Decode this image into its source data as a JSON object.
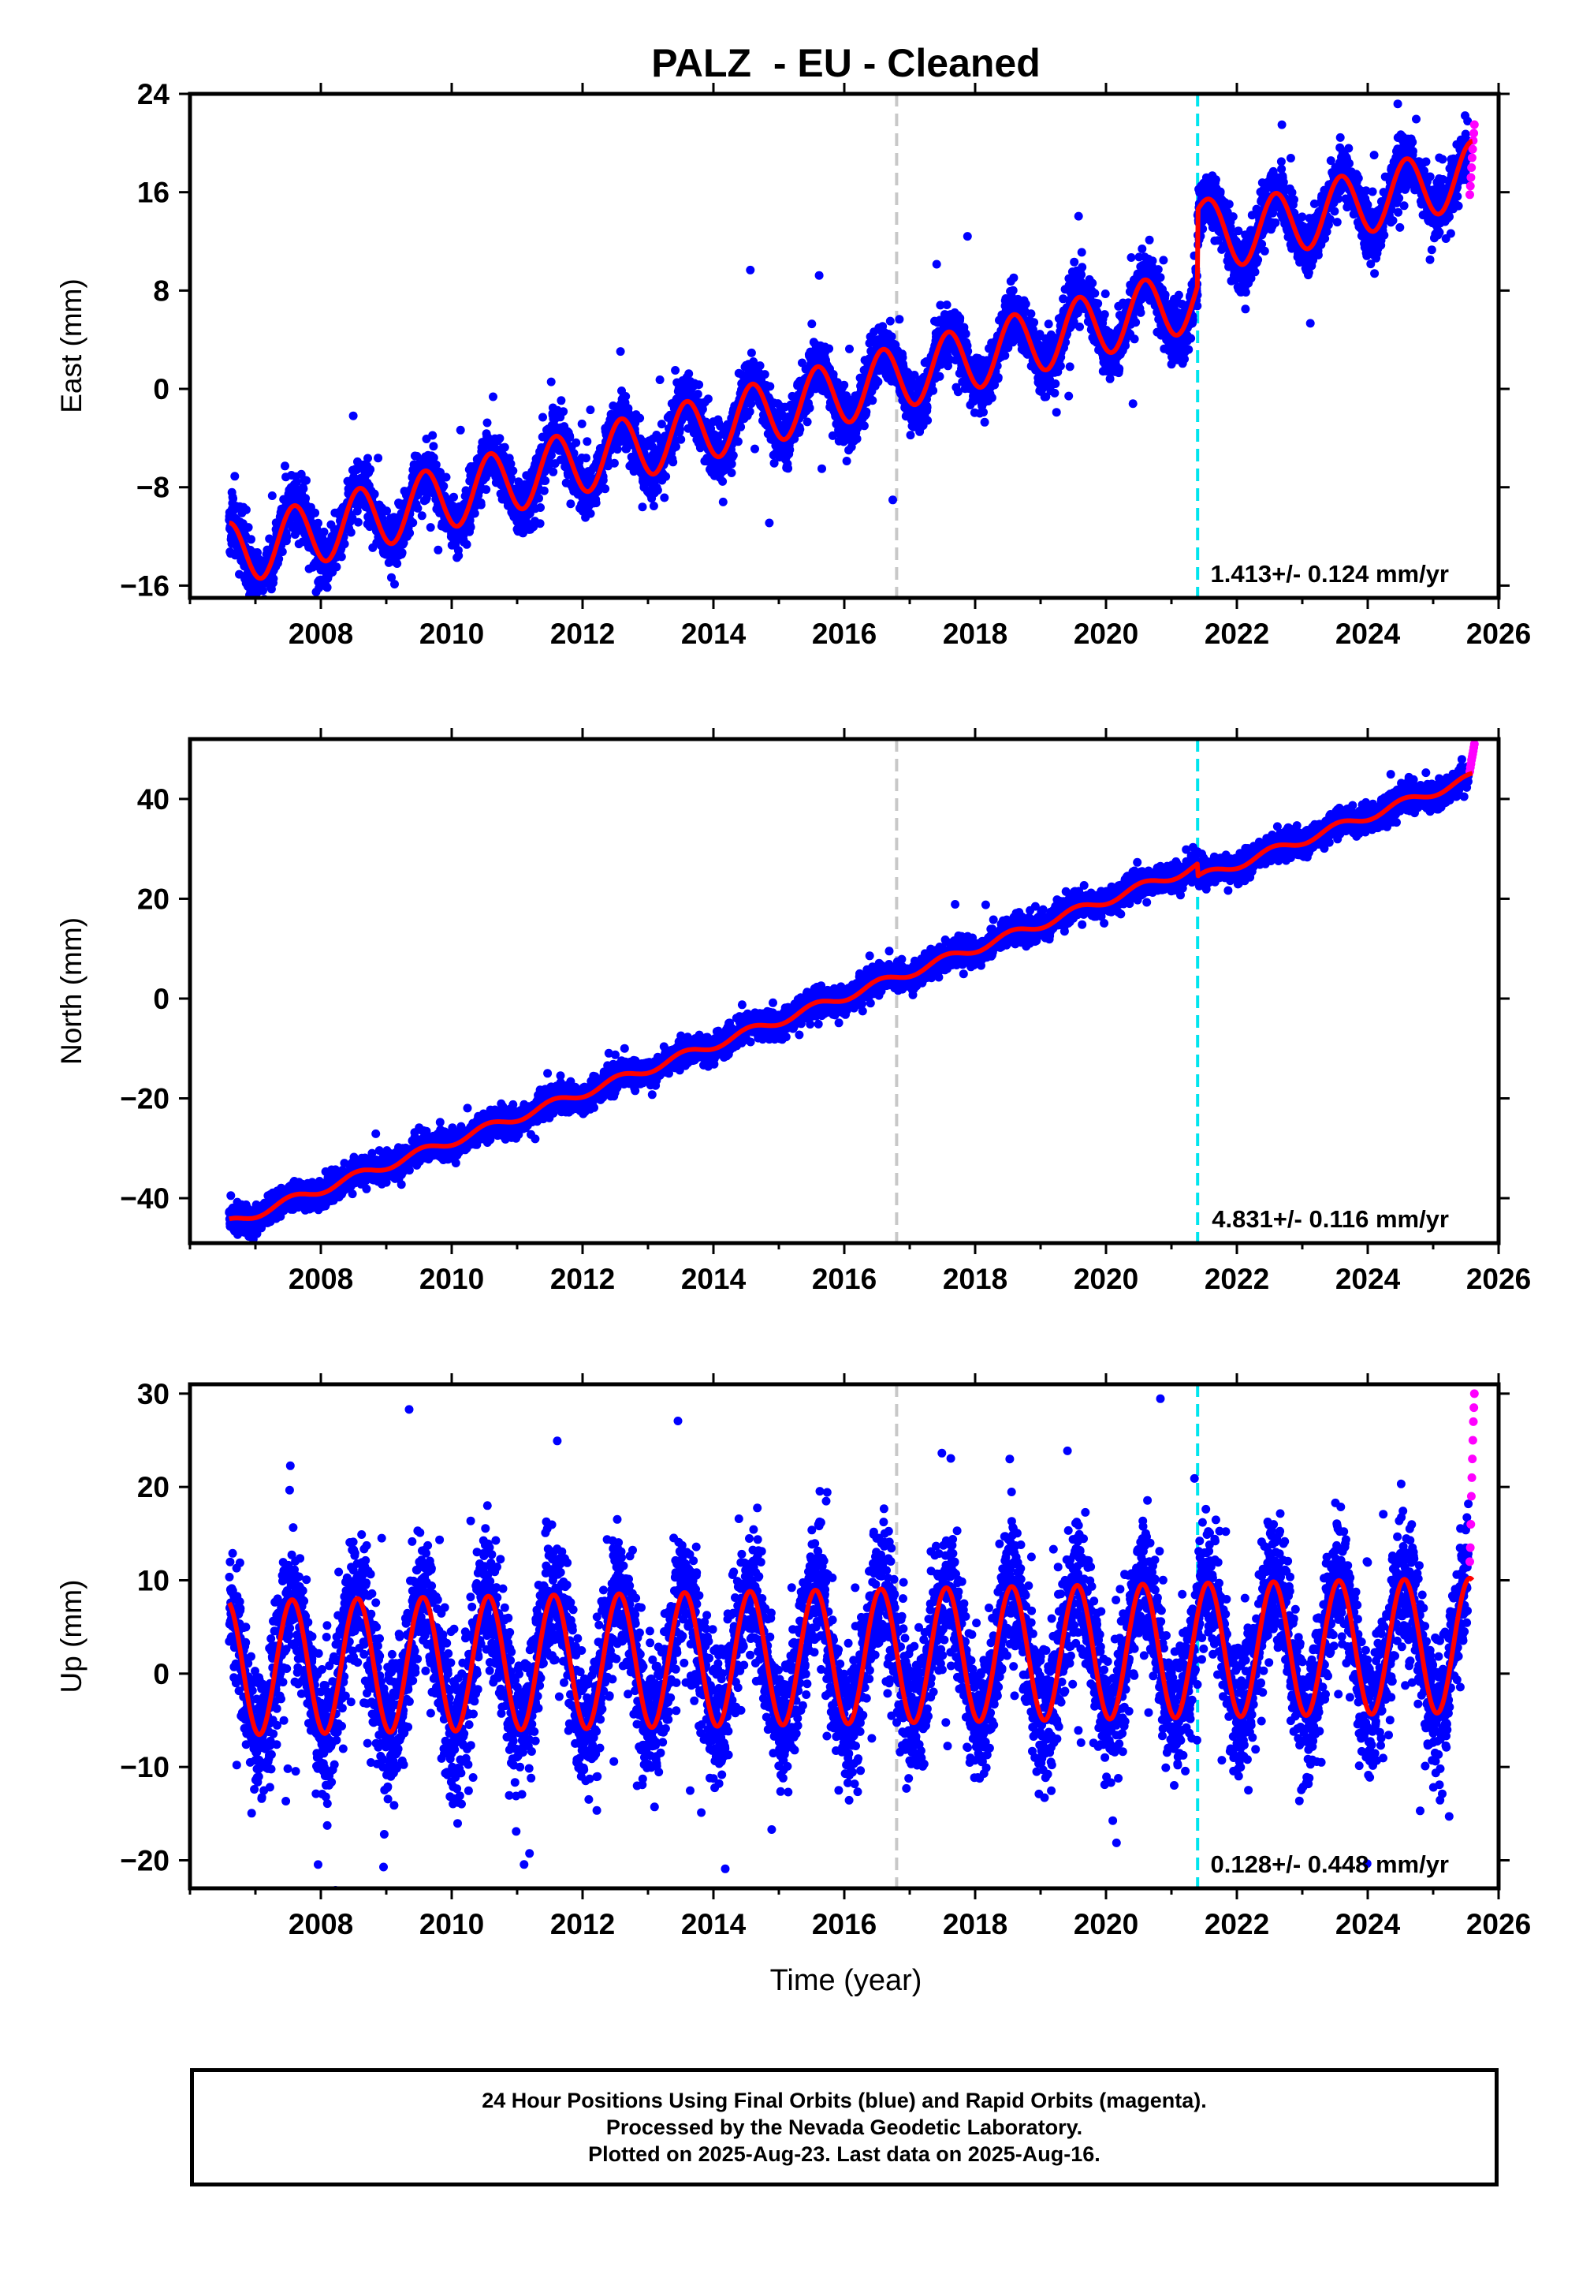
{
  "title": "PALZ  - EU - Cleaned",
  "xlabel": "Time (year)",
  "colors": {
    "final_orbits": "#0000ff",
    "rapid_orbits": "#ff00ff",
    "model": "#ff0000",
    "marker_gray": "#c8c8c8",
    "marker_cyan": "#00e5ee"
  },
  "chart_data": [
    {
      "type": "scatter",
      "ylabel": "East (mm)",
      "xlim": [
        2006.0,
        2026.0
      ],
      "ylim": [
        -17.0,
        24.0
      ],
      "xticks": [
        2008,
        2010,
        2012,
        2014,
        2016,
        2018,
        2020,
        2022,
        2024,
        2026
      ],
      "yticks": [
        -16,
        -8,
        0,
        8,
        16,
        24
      ],
      "rate_label": "1.413+/- 0.124 mm/yr",
      "vertical_markers": [
        {
          "x": 2016.8,
          "style": "gray-dashed"
        },
        {
          "x": 2021.4,
          "style": "cyan-dashed"
        }
      ],
      "model": {
        "start": 2006.6,
        "end": 2025.6,
        "ref": 2006.6,
        "value_at_start": -13.5,
        "rate": 1.413,
        "annual_amp": 2.6,
        "annual_phase": 0.34,
        "steps": [
          {
            "t": 2021.4,
            "offset": 4.2,
            "decay": 2.0,
            "decay_tau": 0.25
          }
        ]
      },
      "series": [
        {
          "name": "Final Orbits",
          "color": "#0000ff",
          "x_range": [
            2006.6,
            2025.54
          ],
          "noise": 1.1,
          "outlier_rate": 0.02,
          "outlier_spread": 4.0
        },
        {
          "name": "Rapid Orbits",
          "color": "#ff00ff",
          "x_range": [
            2025.56,
            2025.63
          ],
          "y_values": [
            15.8,
            16.5,
            17.2,
            18.0,
            18.8,
            19.5,
            20.2,
            20.8,
            21.5
          ]
        }
      ]
    },
    {
      "type": "scatter",
      "ylabel": "North (mm)",
      "xlim": [
        2006.0,
        2026.0
      ],
      "ylim": [
        -49.0,
        52.0
      ],
      "xticks": [
        2008,
        2010,
        2012,
        2014,
        2016,
        2018,
        2020,
        2022,
        2024,
        2026
      ],
      "yticks": [
        -40,
        -20,
        0,
        20,
        40
      ],
      "rate_label": "4.831+/- 0.116 mm/yr",
      "vertical_markers": [
        {
          "x": 2016.8,
          "style": "gray-dashed"
        },
        {
          "x": 2021.4,
          "style": "cyan-dashed"
        }
      ],
      "model": {
        "start": 2006.6,
        "end": 2025.6,
        "ref": 2006.6,
        "value_at_start": -45.0,
        "rate": 4.831,
        "annual_amp": 0.9,
        "annual_phase": 0.3,
        "steps": [
          {
            "t": 2021.4,
            "offset": -2.5,
            "decay": 0,
            "decay_tau": 0.25
          }
        ]
      },
      "series": [
        {
          "name": "Final Orbits",
          "color": "#0000ff",
          "x_range": [
            2006.6,
            2025.54
          ],
          "noise": 1.3,
          "outlier_rate": 0.015,
          "outlier_spread": 3.0
        },
        {
          "name": "Rapid Orbits",
          "color": "#ff00ff",
          "x_range": [
            2025.56,
            2025.63
          ],
          "y_values": [
            45.5,
            46.3,
            47.0,
            47.8,
            48.4,
            49.0,
            49.6,
            50.3,
            51.0
          ]
        }
      ]
    },
    {
      "type": "scatter",
      "ylabel": "Up (mm)",
      "xlim": [
        2006.0,
        2026.0
      ],
      "ylim": [
        -23.0,
        31.0
      ],
      "xticks": [
        2008,
        2010,
        2012,
        2014,
        2016,
        2018,
        2020,
        2022,
        2024,
        2026
      ],
      "yticks": [
        -20,
        -10,
        0,
        10,
        20,
        30
      ],
      "rate_label": "0.128+/- 0.448 mm/yr",
      "vertical_markers": [
        {
          "x": 2016.8,
          "style": "gray-dashed"
        },
        {
          "x": 2021.4,
          "style": "cyan-dashed"
        }
      ],
      "model": {
        "start": 2006.6,
        "end": 2025.6,
        "ref": 2006.6,
        "value_at_start": 0.6,
        "rate": 0.128,
        "annual_amp": 7.2,
        "annual_phase": 0.31,
        "steps": []
      },
      "series": [
        {
          "name": "Final Orbits",
          "color": "#0000ff",
          "x_range": [
            2006.6,
            2025.54
          ],
          "noise": 3.6,
          "outlier_rate": 0.03,
          "outlier_spread": 9.0
        },
        {
          "name": "Rapid Orbits",
          "color": "#ff00ff",
          "x_range": [
            2025.56,
            2025.63
          ],
          "y_values": [
            12.0,
            13.5,
            16.0,
            19.0,
            21.0,
            23.0,
            25.0,
            27.0,
            28.5,
            30.0
          ]
        }
      ]
    }
  ],
  "footer": {
    "line1": "24 Hour Positions Using Final Orbits (blue) and Rapid Orbits (magenta).",
    "line2": "Processed by the Nevada Geodetic Laboratory.",
    "line3": "Plotted on 2025-Aug-23. Last data on 2025-Aug-16."
  }
}
